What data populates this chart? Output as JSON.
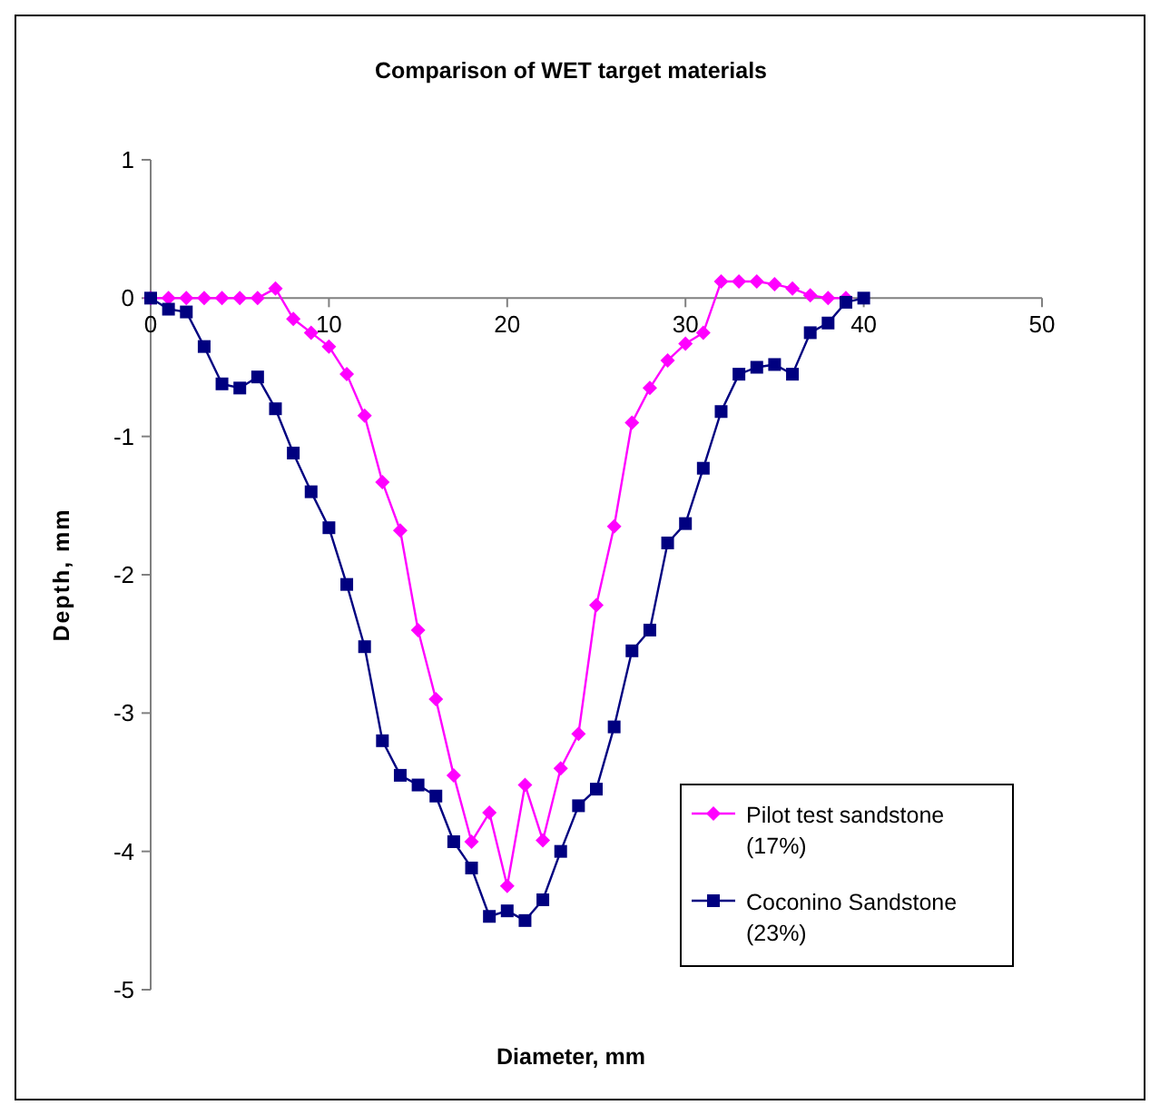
{
  "chart_data": {
    "type": "line",
    "title": "Comparison of WET target materials",
    "xlabel": "Diameter, mm",
    "ylabel": "Depth, mm",
    "xlim": [
      0,
      50
    ],
    "xticks": [
      0,
      10,
      20,
      30,
      40,
      50
    ],
    "ylim": [
      -5,
      1
    ],
    "yticks": [
      -5,
      -4,
      -3,
      -2,
      -1,
      0,
      1
    ],
    "grid": false,
    "legend": "bottom right",
    "series": [
      {
        "name": "Pilot test sandstone (17%)",
        "color": "#ff00ff",
        "marker": "diamond",
        "x": [
          0,
          1,
          2,
          3,
          4,
          5,
          6,
          7,
          8,
          9,
          10,
          11,
          12,
          13,
          14,
          15,
          16,
          17,
          18,
          19,
          20,
          21,
          22,
          23,
          24,
          25,
          26,
          27,
          28,
          29,
          30,
          31,
          32,
          33,
          34,
          35,
          36,
          37,
          38,
          39
        ],
        "values": [
          0,
          0,
          0,
          0,
          0,
          0,
          0,
          0.07,
          -0.15,
          -0.25,
          -0.35,
          -0.55,
          -0.85,
          -1.33,
          -1.68,
          -2.4,
          -2.9,
          -3.45,
          -3.93,
          -3.72,
          -4.25,
          -3.52,
          -3.92,
          -3.4,
          -3.15,
          -2.22,
          -1.65,
          -0.9,
          -0.65,
          -0.45,
          -0.33,
          -0.25,
          0.12,
          0.12,
          0.12,
          0.1,
          0.07,
          0.02,
          0,
          0
        ]
      },
      {
        "name": "Coconino Sandstone (23%)",
        "color": "#000080",
        "marker": "square",
        "x": [
          0,
          1,
          2,
          3,
          4,
          5,
          6,
          7,
          8,
          9,
          10,
          11,
          12,
          13,
          14,
          15,
          16,
          17,
          18,
          19,
          20,
          21,
          22,
          23,
          24,
          25,
          26,
          27,
          28,
          29,
          30,
          31,
          32,
          33,
          34,
          35,
          36,
          37,
          38,
          39,
          40
        ],
        "values": [
          0,
          -0.08,
          -0.1,
          -0.35,
          -0.62,
          -0.65,
          -0.57,
          -0.8,
          -1.12,
          -1.4,
          -1.66,
          -2.07,
          -2.52,
          -3.2,
          -3.45,
          -3.52,
          -3.6,
          -3.93,
          -4.12,
          -4.47,
          -4.43,
          -4.5,
          -4.35,
          -4.0,
          -3.67,
          -3.55,
          -3.1,
          -2.55,
          -2.4,
          -1.77,
          -1.63,
          -1.23,
          -0.82,
          -0.55,
          -0.5,
          -0.48,
          -0.55,
          -0.25,
          -0.18,
          -0.03,
          0
        ]
      }
    ]
  }
}
